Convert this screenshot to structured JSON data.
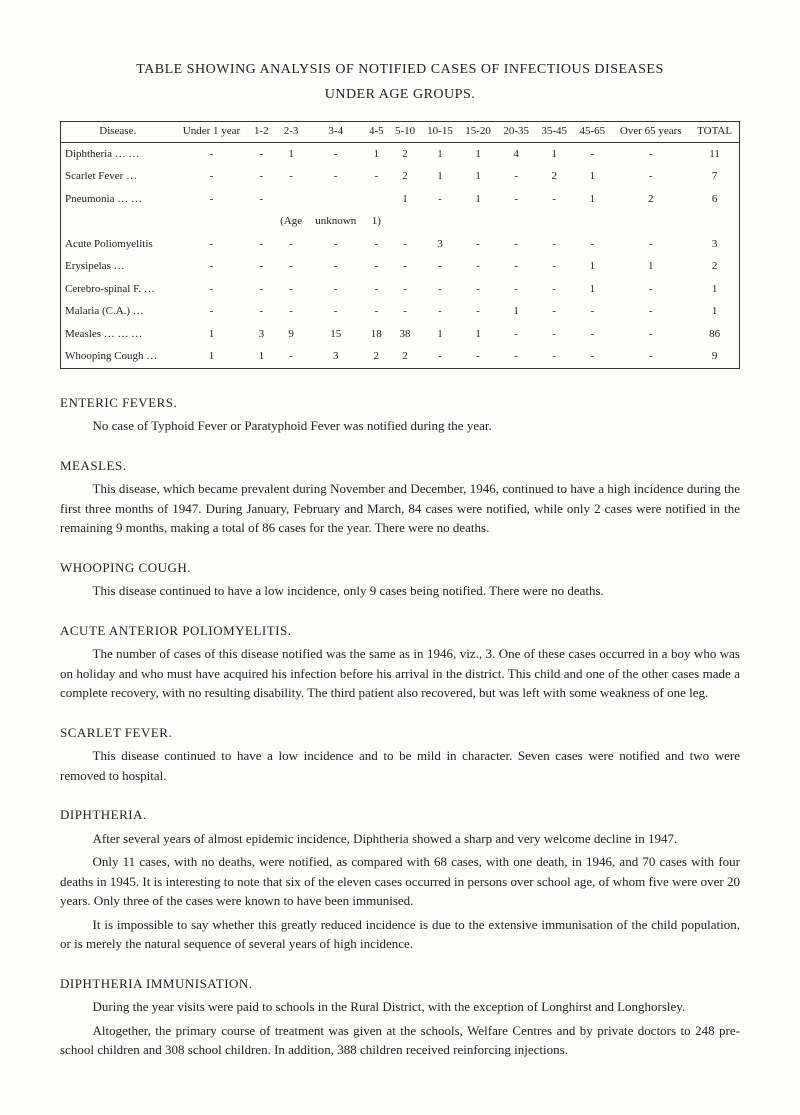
{
  "title_line1": "TABLE SHOWING ANALYSIS OF NOTIFIED CASES OF INFECTIOUS DISEASES",
  "title_line2": "UNDER AGE GROUPS.",
  "table": {
    "headers": [
      "Disease.",
      "Under 1 year",
      "1-2",
      "2-3",
      "3-4",
      "4-5",
      "5-10",
      "10-15",
      "15-20",
      "20-35",
      "35-45",
      "45-65",
      "Over 65 years",
      "TOTAL"
    ],
    "rows": [
      [
        "Diphtheria … …",
        "-",
        "-",
        "1",
        "-",
        "1",
        "2",
        "1",
        "1",
        "4",
        "1",
        "-",
        "-",
        "11"
      ],
      [
        "Scarlet Fever …",
        "-",
        "-",
        "-",
        "-",
        "-",
        "2",
        "1",
        "1",
        "-",
        "2",
        "1",
        "-",
        "7"
      ],
      [
        "Pneumonia … …",
        "-",
        "-",
        "",
        "",
        "",
        "1",
        "-",
        "1",
        "-",
        "-",
        "1",
        "2",
        "6"
      ],
      [
        "",
        "",
        "",
        "(Age",
        "unknown",
        "1)",
        "",
        "",
        "",
        "",
        "",
        "",
        "",
        ""
      ],
      [
        "Acute Poliomyelitis",
        "-",
        "-",
        "-",
        "-",
        "-",
        "-",
        "3",
        "-",
        "-",
        "-",
        "-",
        "-",
        "3"
      ],
      [
        "Erysipelas …",
        "-",
        "-",
        "-",
        "-",
        "-",
        "-",
        "-",
        "-",
        "-",
        "-",
        "1",
        "1",
        "2"
      ],
      [
        "Cerebro-spinal F. …",
        "-",
        "-",
        "-",
        "-",
        "-",
        "-",
        "-",
        "-",
        "-",
        "-",
        "1",
        "-",
        "1"
      ],
      [
        "Malaria (C.A.) …",
        "-",
        "-",
        "-",
        "-",
        "-",
        "-",
        "-",
        "-",
        "1",
        "-",
        "-",
        "-",
        "1"
      ],
      [
        "Measles … … …",
        "1",
        "3",
        "9",
        "15",
        "18",
        "38",
        "1",
        "1",
        "-",
        "-",
        "-",
        "-",
        "86"
      ],
      [
        "Whooping Cough …",
        "1",
        "1",
        "-",
        "3",
        "2",
        "2",
        "-",
        "-",
        "-",
        "-",
        "-",
        "-",
        "9"
      ]
    ]
  },
  "sections": {
    "enteric_title": "ENTERIC FEVERS.",
    "enteric_p1": "No case of Typhoid Fever or Paratyphoid Fever was notified during the year.",
    "measles_title": "MEASLES.",
    "measles_p1": "This disease, which became prevalent during November and December, 1946, continued to have a high incidence during the first three months of 1947. During January, February and March, 84 cases were notified, while only 2 cases were notified in the remaining 9 months, making a total of 86 cases for the year. There were no deaths.",
    "whooping_title": "WHOOPING COUGH.",
    "whooping_p1": "This disease continued to have a low incidence, only 9 cases being notified. There were no deaths.",
    "polio_title": "ACUTE ANTERIOR POLIOMYELITIS.",
    "polio_p1": "The number of cases of this disease notified was the same as in 1946, viz., 3. One of these cases occurred in a boy who was on holiday and who must have acquired his infection before his arrival in the district. This child and one of the other cases made a complete recovery, with no resulting disability. The third patient also recovered, but was left with some weakness of one leg.",
    "scarlet_title": "SCARLET FEVER.",
    "scarlet_p1": "This disease continued to have a low incidence and to be mild in character. Seven cases were notified and two were removed to hospital.",
    "diph_title": "DIPHTHERIA.",
    "diph_p1": "After several years of almost epidemic incidence, Diphtheria showed a sharp and very welcome decline in 1947.",
    "diph_p2": "Only 11 cases, with no deaths, were notified, as compared with 68 cases, with one death, in 1946, and 70 cases with four deaths in 1945. It is interesting to note that six of the eleven cases occurred in persons over school age, of whom five were over 20 years. Only three of the cases were known to have been immunised.",
    "diph_p3": "It is impossible to say whether this greatly reduced incidence is due to the extensive immunisation of the child population, or is merely the natural sequence of several years of high incidence.",
    "diphimm_title": "DIPHTHERIA IMMUNISATION.",
    "diphimm_p1": "During the year visits were paid to schools in the Rural District, with the exception of Longhirst and Longhorsley.",
    "diphimm_p2": "Altogether, the primary course of treatment was given at the schools, Welfare Centres and by private doctors to 248 pre-school children and 308 school children. In addition, 388 children received reinforcing injections."
  }
}
